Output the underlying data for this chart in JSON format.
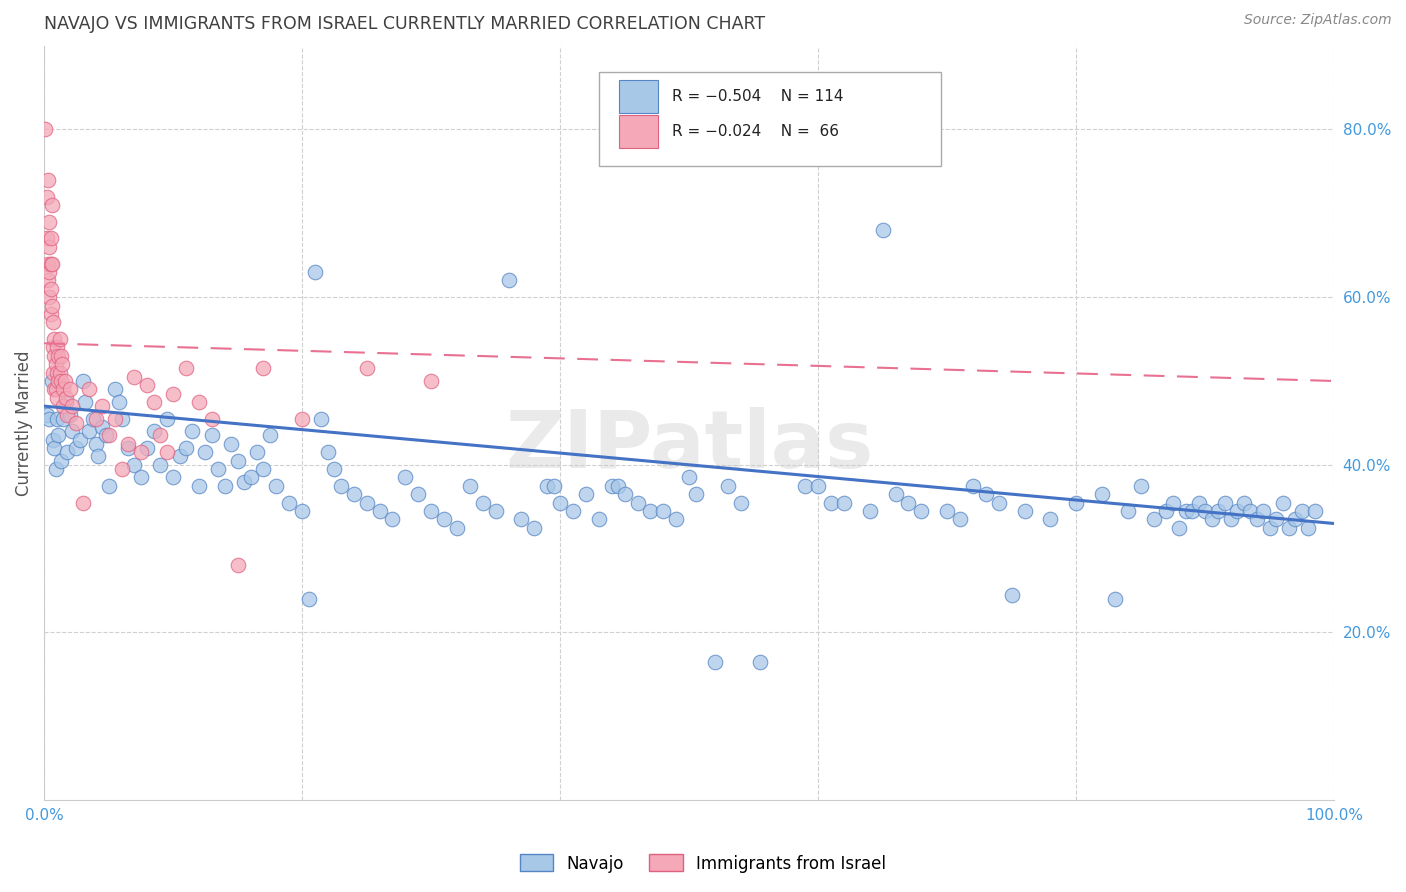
{
  "title": "NAVAJO VS IMMIGRANTS FROM ISRAEL CURRENTLY MARRIED CORRELATION CHART",
  "source": "Source: ZipAtlas.com",
  "ylabel": "Currently Married",
  "watermark": "ZIPatlas",
  "blue_color": "#a8c8e8",
  "pink_color": "#f4a8b8",
  "blue_edge_color": "#5585c5",
  "pink_edge_color": "#e06080",
  "blue_line_color": "#4472c4",
  "pink_line_color": "#e87090",
  "axis_tick_color": "#4499dd",
  "grid_color": "#d0d0d0",
  "title_color": "#404040",
  "ylim": [
    0.0,
    0.9
  ],
  "xlim": [
    0.0,
    1.0
  ],
  "blue_trend": [
    0.47,
    0.33
  ],
  "pink_trend": [
    0.545,
    0.5
  ],
  "navajo_points": [
    [
      0.002,
      0.46
    ],
    [
      0.004,
      0.455
    ],
    [
      0.006,
      0.5
    ],
    [
      0.007,
      0.43
    ],
    [
      0.008,
      0.42
    ],
    [
      0.009,
      0.395
    ],
    [
      0.01,
      0.455
    ],
    [
      0.011,
      0.435
    ],
    [
      0.013,
      0.405
    ],
    [
      0.015,
      0.455
    ],
    [
      0.017,
      0.475
    ],
    [
      0.018,
      0.415
    ],
    [
      0.02,
      0.46
    ],
    [
      0.022,
      0.44
    ],
    [
      0.025,
      0.42
    ],
    [
      0.028,
      0.43
    ],
    [
      0.03,
      0.5
    ],
    [
      0.032,
      0.475
    ],
    [
      0.035,
      0.44
    ],
    [
      0.038,
      0.455
    ],
    [
      0.04,
      0.425
    ],
    [
      0.042,
      0.41
    ],
    [
      0.045,
      0.445
    ],
    [
      0.048,
      0.435
    ],
    [
      0.05,
      0.375
    ],
    [
      0.055,
      0.49
    ],
    [
      0.058,
      0.475
    ],
    [
      0.06,
      0.455
    ],
    [
      0.065,
      0.42
    ],
    [
      0.07,
      0.4
    ],
    [
      0.075,
      0.385
    ],
    [
      0.08,
      0.42
    ],
    [
      0.085,
      0.44
    ],
    [
      0.09,
      0.4
    ],
    [
      0.095,
      0.455
    ],
    [
      0.1,
      0.385
    ],
    [
      0.105,
      0.41
    ],
    [
      0.11,
      0.42
    ],
    [
      0.115,
      0.44
    ],
    [
      0.12,
      0.375
    ],
    [
      0.125,
      0.415
    ],
    [
      0.13,
      0.435
    ],
    [
      0.135,
      0.395
    ],
    [
      0.14,
      0.375
    ],
    [
      0.145,
      0.425
    ],
    [
      0.15,
      0.405
    ],
    [
      0.155,
      0.38
    ],
    [
      0.16,
      0.385
    ],
    [
      0.165,
      0.415
    ],
    [
      0.17,
      0.395
    ],
    [
      0.175,
      0.435
    ],
    [
      0.18,
      0.375
    ],
    [
      0.19,
      0.355
    ],
    [
      0.2,
      0.345
    ],
    [
      0.205,
      0.24
    ],
    [
      0.21,
      0.63
    ],
    [
      0.215,
      0.455
    ],
    [
      0.22,
      0.415
    ],
    [
      0.225,
      0.395
    ],
    [
      0.23,
      0.375
    ],
    [
      0.24,
      0.365
    ],
    [
      0.25,
      0.355
    ],
    [
      0.26,
      0.345
    ],
    [
      0.27,
      0.335
    ],
    [
      0.28,
      0.385
    ],
    [
      0.29,
      0.365
    ],
    [
      0.3,
      0.345
    ],
    [
      0.31,
      0.335
    ],
    [
      0.32,
      0.325
    ],
    [
      0.33,
      0.375
    ],
    [
      0.34,
      0.355
    ],
    [
      0.35,
      0.345
    ],
    [
      0.36,
      0.62
    ],
    [
      0.37,
      0.335
    ],
    [
      0.38,
      0.325
    ],
    [
      0.39,
      0.375
    ],
    [
      0.395,
      0.375
    ],
    [
      0.4,
      0.355
    ],
    [
      0.41,
      0.345
    ],
    [
      0.42,
      0.365
    ],
    [
      0.43,
      0.335
    ],
    [
      0.44,
      0.375
    ],
    [
      0.445,
      0.375
    ],
    [
      0.45,
      0.365
    ],
    [
      0.46,
      0.355
    ],
    [
      0.47,
      0.345
    ],
    [
      0.48,
      0.345
    ],
    [
      0.49,
      0.335
    ],
    [
      0.5,
      0.385
    ],
    [
      0.505,
      0.365
    ],
    [
      0.52,
      0.165
    ],
    [
      0.53,
      0.375
    ],
    [
      0.54,
      0.355
    ],
    [
      0.555,
      0.165
    ],
    [
      0.59,
      0.375
    ],
    [
      0.6,
      0.375
    ],
    [
      0.61,
      0.355
    ],
    [
      0.62,
      0.355
    ],
    [
      0.64,
      0.345
    ],
    [
      0.65,
      0.68
    ],
    [
      0.66,
      0.365
    ],
    [
      0.67,
      0.355
    ],
    [
      0.68,
      0.345
    ],
    [
      0.7,
      0.345
    ],
    [
      0.71,
      0.335
    ],
    [
      0.72,
      0.375
    ],
    [
      0.73,
      0.365
    ],
    [
      0.74,
      0.355
    ],
    [
      0.75,
      0.245
    ],
    [
      0.76,
      0.345
    ],
    [
      0.78,
      0.335
    ],
    [
      0.8,
      0.355
    ],
    [
      0.82,
      0.365
    ],
    [
      0.83,
      0.24
    ],
    [
      0.84,
      0.345
    ],
    [
      0.85,
      0.375
    ],
    [
      0.86,
      0.335
    ],
    [
      0.87,
      0.345
    ],
    [
      0.875,
      0.355
    ],
    [
      0.88,
      0.325
    ],
    [
      0.885,
      0.345
    ],
    [
      0.89,
      0.345
    ],
    [
      0.895,
      0.355
    ],
    [
      0.9,
      0.345
    ],
    [
      0.905,
      0.335
    ],
    [
      0.91,
      0.345
    ],
    [
      0.915,
      0.355
    ],
    [
      0.92,
      0.335
    ],
    [
      0.925,
      0.345
    ],
    [
      0.93,
      0.355
    ],
    [
      0.935,
      0.345
    ],
    [
      0.94,
      0.335
    ],
    [
      0.945,
      0.345
    ],
    [
      0.95,
      0.325
    ],
    [
      0.955,
      0.335
    ],
    [
      0.96,
      0.355
    ],
    [
      0.965,
      0.325
    ],
    [
      0.97,
      0.335
    ],
    [
      0.975,
      0.345
    ],
    [
      0.98,
      0.325
    ],
    [
      0.985,
      0.345
    ]
  ],
  "israel_points": [
    [
      0.001,
      0.8
    ],
    [
      0.002,
      0.72
    ],
    [
      0.002,
      0.67
    ],
    [
      0.003,
      0.74
    ],
    [
      0.003,
      0.64
    ],
    [
      0.003,
      0.62
    ],
    [
      0.004,
      0.69
    ],
    [
      0.004,
      0.66
    ],
    [
      0.004,
      0.63
    ],
    [
      0.004,
      0.6
    ],
    [
      0.005,
      0.67
    ],
    [
      0.005,
      0.64
    ],
    [
      0.005,
      0.61
    ],
    [
      0.005,
      0.58
    ],
    [
      0.006,
      0.71
    ],
    [
      0.006,
      0.64
    ],
    [
      0.006,
      0.59
    ],
    [
      0.007,
      0.57
    ],
    [
      0.007,
      0.54
    ],
    [
      0.007,
      0.51
    ],
    [
      0.008,
      0.55
    ],
    [
      0.008,
      0.53
    ],
    [
      0.008,
      0.49
    ],
    [
      0.009,
      0.52
    ],
    [
      0.009,
      0.49
    ],
    [
      0.01,
      0.54
    ],
    [
      0.01,
      0.51
    ],
    [
      0.01,
      0.48
    ],
    [
      0.011,
      0.53
    ],
    [
      0.011,
      0.5
    ],
    [
      0.012,
      0.55
    ],
    [
      0.012,
      0.51
    ],
    [
      0.013,
      0.53
    ],
    [
      0.013,
      0.5
    ],
    [
      0.014,
      0.52
    ],
    [
      0.015,
      0.49
    ],
    [
      0.015,
      0.47
    ],
    [
      0.016,
      0.5
    ],
    [
      0.017,
      0.48
    ],
    [
      0.018,
      0.46
    ],
    [
      0.02,
      0.49
    ],
    [
      0.022,
      0.47
    ],
    [
      0.025,
      0.45
    ],
    [
      0.03,
      0.355
    ],
    [
      0.035,
      0.49
    ],
    [
      0.04,
      0.455
    ],
    [
      0.045,
      0.47
    ],
    [
      0.05,
      0.435
    ],
    [
      0.055,
      0.455
    ],
    [
      0.06,
      0.395
    ],
    [
      0.065,
      0.425
    ],
    [
      0.07,
      0.505
    ],
    [
      0.075,
      0.415
    ],
    [
      0.08,
      0.495
    ],
    [
      0.085,
      0.475
    ],
    [
      0.09,
      0.435
    ],
    [
      0.095,
      0.415
    ],
    [
      0.1,
      0.485
    ],
    [
      0.11,
      0.515
    ],
    [
      0.12,
      0.475
    ],
    [
      0.13,
      0.455
    ],
    [
      0.15,
      0.28
    ],
    [
      0.17,
      0.515
    ],
    [
      0.2,
      0.455
    ],
    [
      0.25,
      0.515
    ],
    [
      0.3,
      0.5
    ]
  ]
}
